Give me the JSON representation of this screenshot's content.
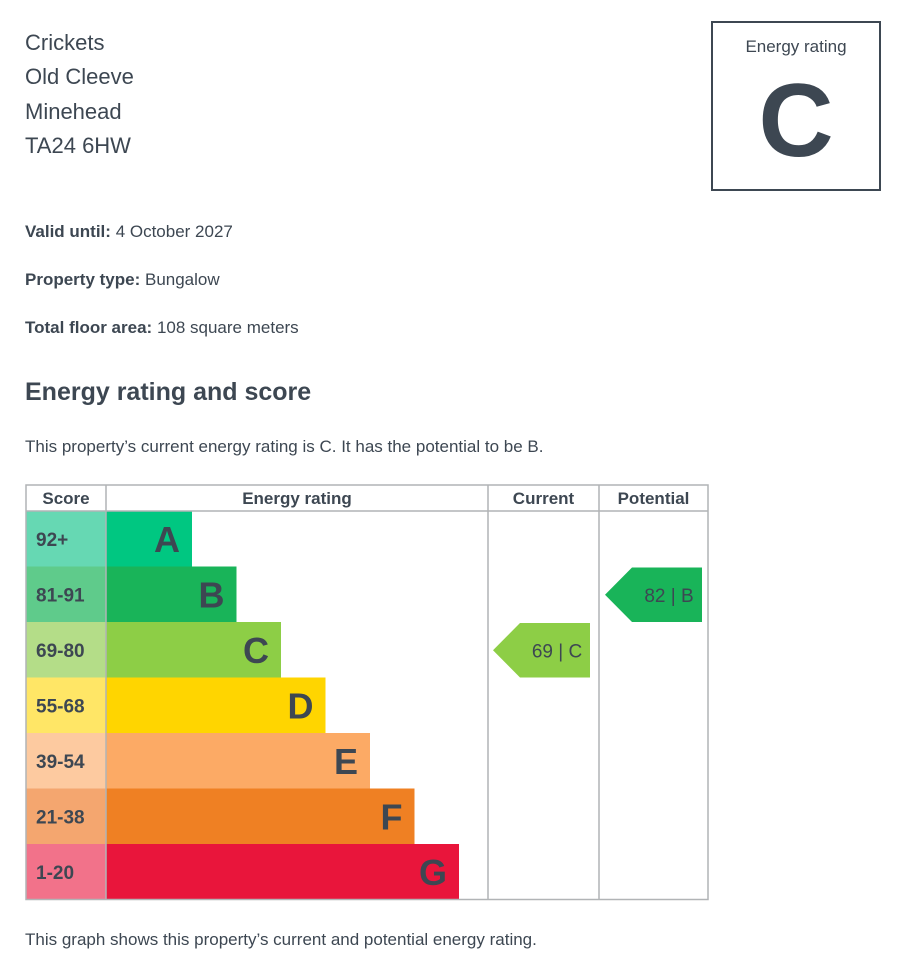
{
  "address": {
    "line1": "Crickets",
    "line2": "Old Cleeve",
    "line3": "Minehead",
    "postcode": "TA24 6HW"
  },
  "rating_box": {
    "label": "Energy rating",
    "letter": "C"
  },
  "details": {
    "valid_until_label": "Valid until:",
    "valid_until": "4 October 2027",
    "property_type_label": "Property type:",
    "property_type": "Bungalow",
    "floor_area_label": "Total floor area:",
    "floor_area": "108 square meters"
  },
  "section": {
    "title": "Energy rating and score",
    "summary": "This property’s current energy rating is C. It has the potential to be B.",
    "footnote": "This graph shows this property’s current and potential energy rating."
  },
  "chart_data": {
    "type": "table",
    "headers": {
      "score": "Score",
      "rating": "Energy rating",
      "current": "Current",
      "potential": "Potential"
    },
    "bands": [
      {
        "score": "92+",
        "letter": "A",
        "color": "#00c781",
        "score_color": "#66d8b3"
      },
      {
        "score": "81-91",
        "letter": "B",
        "color": "#19b459",
        "score_color": "#5fcb8b"
      },
      {
        "score": "69-80",
        "letter": "C",
        "color": "#8dce46",
        "score_color": "#b4dd88"
      },
      {
        "score": "55-68",
        "letter": "D",
        "color": "#ffd500",
        "score_color": "#ffe666"
      },
      {
        "score": "39-54",
        "letter": "E",
        "color": "#fcaa65",
        "score_color": "#fdcaa0"
      },
      {
        "score": "21-38",
        "letter": "F",
        "color": "#ef8023",
        "score_color": "#f4a66f"
      },
      {
        "score": "1-20",
        "letter": "G",
        "color": "#e9153b",
        "score_color": "#f2728a"
      }
    ],
    "current": {
      "score": 69,
      "letter": "C",
      "label": "69 | C",
      "color": "#8dce46"
    },
    "potential": {
      "score": 82,
      "letter": "B",
      "label": "82 | B",
      "color": "#19b459"
    }
  }
}
